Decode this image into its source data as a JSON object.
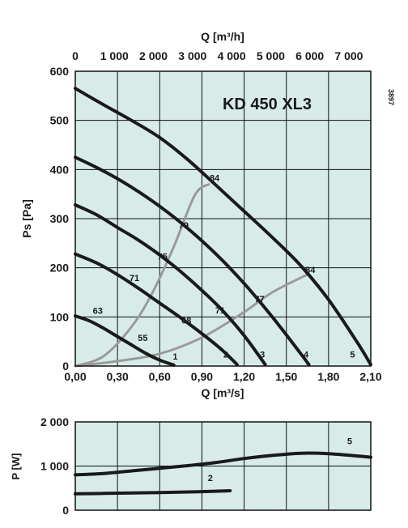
{
  "colors": {
    "plot_background": "#d7ece9",
    "grid": "#111111",
    "fan_curve": "#1a1a1a",
    "system_curve": "#9a9a9a",
    "text": "#1a1a1a"
  },
  "chart_data": [
    {
      "type": "line",
      "title": "KD 450 XL3",
      "side_label": "3897",
      "xlabel": "Q [m³/s]",
      "x2label": "Q [m³/h]",
      "ylabel": "Ps [Pa]",
      "xlim": [
        0,
        2.1
      ],
      "ylim": [
        0,
        600
      ],
      "x_ticks": [
        0,
        0.3,
        0.6,
        0.9,
        1.2,
        1.5,
        1.8,
        2.1
      ],
      "x_tick_labels": [
        "0,00",
        "0,30",
        "0,60",
        "0,90",
        "1,20",
        "1,50",
        "1,80",
        "2,10"
      ],
      "x2_ticks": [
        0,
        0.2778,
        0.5556,
        0.8333,
        1.1111,
        1.3889,
        1.6667,
        1.9444
      ],
      "x2_tick_labels": [
        "0",
        "1 000",
        "2 000",
        "3 000",
        "4 000",
        "5 000",
        "6 000",
        "7 000"
      ],
      "y_ticks": [
        0,
        100,
        200,
        300,
        400,
        500,
        600
      ],
      "y_tick_labels": [
        "0",
        "100",
        "200",
        "300",
        "400",
        "500",
        "600"
      ],
      "grid": true,
      "series": [
        {
          "name": "1",
          "kind": "fan",
          "x": [
            0,
            0.1,
            0.2,
            0.3,
            0.4,
            0.5,
            0.6,
            0.7
          ],
          "y": [
            102,
            92,
            77,
            60,
            43,
            26,
            12,
            2
          ]
        },
        {
          "name": "2",
          "kind": "fan",
          "x": [
            0,
            0.15,
            0.3,
            0.45,
            0.6,
            0.75,
            0.9,
            1.05,
            1.15
          ],
          "y": [
            228,
            210,
            186,
            158,
            128,
            98,
            66,
            31,
            3
          ]
        },
        {
          "name": "3",
          "kind": "fan",
          "x": [
            0,
            0.15,
            0.3,
            0.45,
            0.6,
            0.75,
            0.9,
            1.05,
            1.2,
            1.35
          ],
          "y": [
            328,
            308,
            282,
            256,
            226,
            192,
            154,
            112,
            62,
            3
          ]
        },
        {
          "name": "4",
          "kind": "fan",
          "x": [
            0,
            0.2,
            0.4,
            0.6,
            0.8,
            1.0,
            1.2,
            1.4,
            1.6,
            1.66
          ],
          "y": [
            425,
            397,
            364,
            325,
            280,
            228,
            168,
            100,
            26,
            3
          ]
        },
        {
          "name": "5",
          "kind": "fan",
          "x": [
            0,
            0.2,
            0.4,
            0.6,
            0.8,
            1.0,
            1.2,
            1.4,
            1.6,
            1.8,
            2.0,
            2.1
          ],
          "y": [
            565,
            532,
            500,
            465,
            420,
            368,
            315,
            262,
            205,
            135,
            50,
            3
          ]
        },
        {
          "name": "",
          "kind": "system",
          "x": [
            0,
            0.2,
            0.4,
            0.55,
            0.7,
            0.85,
            0.95
          ],
          "y": [
            0,
            20,
            80,
            150,
            243,
            348,
            370
          ]
        },
        {
          "name": "",
          "kind": "system",
          "x": [
            0,
            0.3,
            0.6,
            0.9,
            1.2,
            1.4,
            1.64
          ],
          "y": [
            0,
            10,
            25,
            58,
            110,
            150,
            185
          ]
        }
      ],
      "annotations": [
        {
          "text": "84",
          "x": 0.99,
          "y": 383
        },
        {
          "text": "79",
          "x": 0.77,
          "y": 287
        },
        {
          "text": "75",
          "x": 0.62,
          "y": 223
        },
        {
          "text": "71",
          "x": 0.42,
          "y": 180
        },
        {
          "text": "63",
          "x": 0.16,
          "y": 113
        },
        {
          "text": "55",
          "x": 0.48,
          "y": 58
        },
        {
          "text": "68",
          "x": 0.79,
          "y": 93
        },
        {
          "text": "71",
          "x": 1.03,
          "y": 114
        },
        {
          "text": "77",
          "x": 1.31,
          "y": 137
        },
        {
          "text": "84",
          "x": 1.67,
          "y": 196
        },
        {
          "text": "1",
          "x": 0.71,
          "y": 20
        },
        {
          "text": "2",
          "x": 1.07,
          "y": 24
        },
        {
          "text": "3",
          "x": 1.33,
          "y": 24
        },
        {
          "text": "4",
          "x": 1.64,
          "y": 24
        },
        {
          "text": "5",
          "x": 1.97,
          "y": 24
        }
      ]
    },
    {
      "type": "line",
      "title": "",
      "xlabel": "",
      "ylabel": "P [W]",
      "xlim": [
        0,
        2.1
      ],
      "ylim": [
        0,
        2000
      ],
      "y_ticks": [
        0,
        1000,
        2000
      ],
      "y_tick_labels": [
        "0",
        "1 000",
        "2 000"
      ],
      "grid": true,
      "series": [
        {
          "name": "2",
          "x": [
            0,
            0.3,
            0.6,
            0.9,
            1.1
          ],
          "y": [
            370,
            385,
            400,
            420,
            440
          ]
        },
        {
          "name": "5",
          "x": [
            0,
            0.2,
            0.4,
            0.6,
            0.8,
            1.0,
            1.2,
            1.4,
            1.6,
            1.8,
            2.0,
            2.1
          ],
          "y": [
            800,
            830,
            890,
            950,
            1010,
            1080,
            1170,
            1240,
            1290,
            1280,
            1230,
            1200
          ]
        }
      ],
      "annotations": [
        {
          "text": "5",
          "x": 1.95,
          "y": 1570
        },
        {
          "text": "2",
          "x": 0.96,
          "y": 730
        }
      ]
    }
  ]
}
